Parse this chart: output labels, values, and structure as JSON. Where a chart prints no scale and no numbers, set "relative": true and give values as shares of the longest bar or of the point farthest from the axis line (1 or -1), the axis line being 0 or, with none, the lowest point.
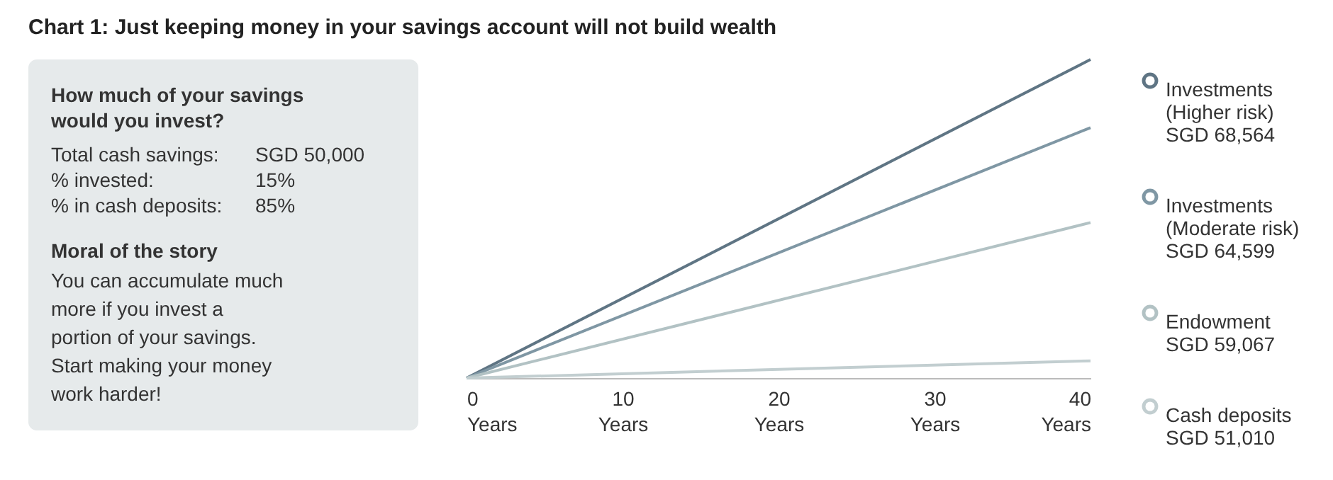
{
  "chart_data": [
    {
      "type": "other",
      "annotations": [
        "How much of your savings would you invest?",
        "Total cash savings:",
        "SGD 50,000",
        "% invested:",
        "15%",
        "% in cash deposits:",
        "85%",
        "Moral of the story",
        "You can accumulate much more if you invest a portion of your savings. Start making your money work harder!"
      ]
    },
    {
      "type": "line",
      "title": "Chart 1: Just keeping money in your savings account will not build wealth",
      "relative": true,
      "x": [
        0,
        40
      ],
      "xlim": [
        0,
        40
      ],
      "xticks": [
        {
          "value": 0,
          "label": "0 Years"
        },
        {
          "value": 10,
          "label": "10 Years"
        },
        {
          "value": 20,
          "label": "20 Years"
        },
        {
          "value": 30,
          "label": "30 Years"
        },
        {
          "value": 40,
          "label": "40 Years"
        }
      ],
      "grid": false,
      "legend": "right",
      "annotations": [
        "SGD 68,564",
        "SGD 64,599",
        "SGD 59,067",
        "SGD 51,010"
      ],
      "series": [
        {
          "name": "Investments (Higher risk)",
          "color": "#5f7584",
          "values": [
            0,
            1
          ]
        },
        {
          "name": "Investments (Moderate risk)",
          "color": "#7f97a4",
          "values": [
            0,
            0.786
          ]
        },
        {
          "name": "Endowment",
          "color": "#b2c2c4",
          "values": [
            0,
            0.488
          ]
        },
        {
          "name": "Cash deposits",
          "color": "#c2ced0",
          "values": [
            0,
            0.054
          ]
        }
      ]
    }
  ]
}
